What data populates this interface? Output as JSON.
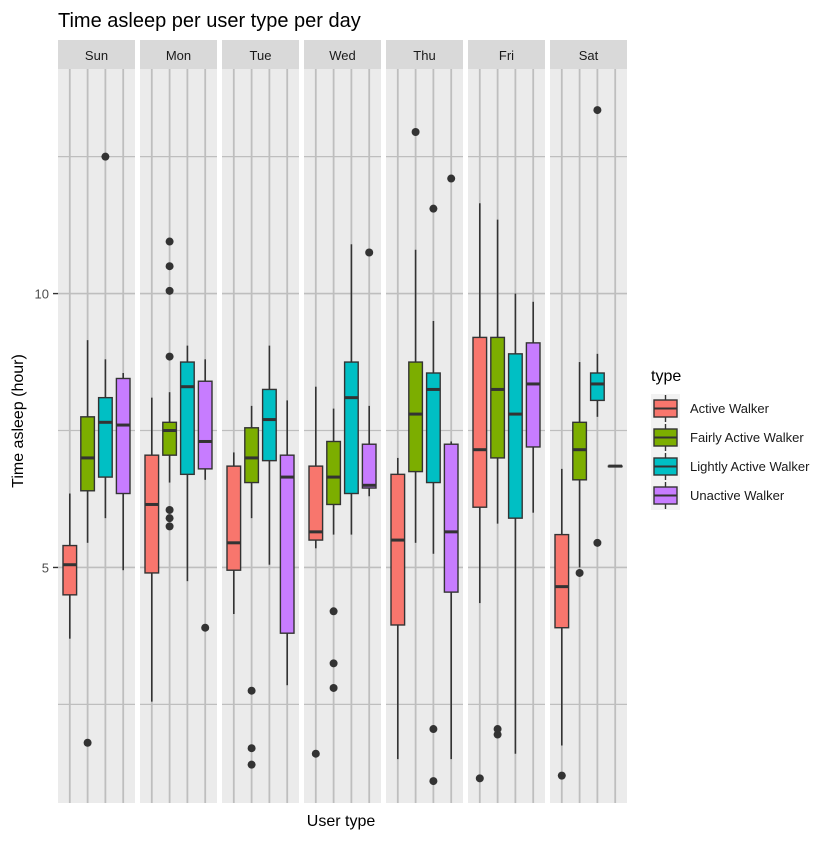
{
  "chart_data": {
    "type": "boxplot",
    "title": "Time asleep per user type per day",
    "xlabel": "User type",
    "ylabel": "Time asleep (hour)",
    "y_ticks": [
      5,
      10
    ],
    "ylim": [
      0.7,
      14.1
    ],
    "facets": [
      "Sun",
      "Mon",
      "Tue",
      "Wed",
      "Thu",
      "Fri",
      "Sat"
    ],
    "legend": {
      "title": "type",
      "position": "right",
      "entries": [
        {
          "name": "Active Walker",
          "color": "#F8766D"
        },
        {
          "name": "Fairly Active Walker",
          "color": "#7CAE00"
        },
        {
          "name": "Lightly Active Walker",
          "color": "#00BFC4"
        },
        {
          "name": "Unactive Walker",
          "color": "#C77CFF"
        }
      ]
    },
    "colors": {
      "panel_bg": "#ebebeb",
      "strip_bg": "#d9d9d9",
      "grid": "#bebebe",
      "box_line": "#333333"
    },
    "series": [
      {
        "name": "Active Walker",
        "boxes": [
          {
            "facet": "Sun",
            "min": 3.7,
            "q1": 4.5,
            "median": 5.05,
            "q3": 5.4,
            "max": 6.35,
            "outliers": []
          },
          {
            "facet": "Mon",
            "min": 2.55,
            "q1": 4.9,
            "median": 6.15,
            "q3": 7.05,
            "max": 8.1,
            "outliers": []
          },
          {
            "facet": "Tue",
            "min": 4.15,
            "q1": 4.95,
            "median": 5.45,
            "q3": 6.85,
            "max": 7.1,
            "outliers": []
          },
          {
            "facet": "Wed",
            "min": 5.35,
            "q1": 5.5,
            "median": 5.65,
            "q3": 6.85,
            "max": 8.3,
            "outliers": [
              1.6
            ]
          },
          {
            "facet": "Thu",
            "min": 1.5,
            "q1": 3.95,
            "median": 5.5,
            "q3": 6.7,
            "max": 7.0,
            "outliers": []
          },
          {
            "facet": "Fri",
            "min": 4.35,
            "q1": 6.1,
            "median": 7.15,
            "q3": 9.2,
            "max": 11.65,
            "outliers": [
              1.15
            ]
          },
          {
            "facet": "Sat",
            "min": 1.75,
            "q1": 3.9,
            "median": 4.65,
            "q3": 5.6,
            "max": 6.8,
            "outliers": [
              1.2
            ]
          }
        ]
      },
      {
        "name": "Fairly Active Walker",
        "boxes": [
          {
            "facet": "Sun",
            "min": 5.45,
            "q1": 6.4,
            "median": 7.0,
            "q3": 7.75,
            "max": 9.15,
            "outliers": [
              1.8
            ]
          },
          {
            "facet": "Mon",
            "min": 6.55,
            "q1": 7.05,
            "median": 7.5,
            "q3": 7.65,
            "max": 8.2,
            "outliers": [
              5.75,
              5.9,
              6.05,
              8.85,
              10.05,
              10.5,
              10.95
            ]
          },
          {
            "facet": "Tue",
            "min": 5.9,
            "q1": 6.55,
            "median": 7.0,
            "q3": 7.55,
            "max": 7.95,
            "outliers": [
              1.4,
              1.7,
              2.75
            ]
          },
          {
            "facet": "Wed",
            "min": 5.6,
            "q1": 6.15,
            "median": 6.65,
            "q3": 7.3,
            "max": 7.9,
            "outliers": [
              2.8,
              3.25,
              4.2
            ]
          },
          {
            "facet": "Thu",
            "min": 5.45,
            "q1": 6.75,
            "median": 7.8,
            "q3": 8.75,
            "max": 10.8,
            "outliers": [
              12.95
            ]
          },
          {
            "facet": "Fri",
            "min": 5.8,
            "q1": 7.0,
            "median": 8.25,
            "q3": 9.2,
            "max": 11.35,
            "outliers": [
              1.95,
              2.05
            ]
          },
          {
            "facet": "Sat",
            "min": 5.0,
            "q1": 6.6,
            "median": 7.15,
            "q3": 7.65,
            "max": 8.75,
            "outliers": [
              4.9
            ]
          }
        ]
      },
      {
        "name": "Lightly Active Walker",
        "boxes": [
          {
            "facet": "Sun",
            "min": 5.9,
            "q1": 6.65,
            "median": 7.65,
            "q3": 8.1,
            "max": 8.8,
            "outliers": [
              12.5
            ]
          },
          {
            "facet": "Mon",
            "min": 4.75,
            "q1": 6.7,
            "median": 8.3,
            "q3": 8.75,
            "max": 9.05,
            "outliers": []
          },
          {
            "facet": "Tue",
            "min": 5.05,
            "q1": 6.95,
            "median": 7.7,
            "q3": 8.25,
            "max": 9.05,
            "outliers": []
          },
          {
            "facet": "Wed",
            "min": 5.6,
            "q1": 6.35,
            "median": 8.1,
            "q3": 8.75,
            "max": 10.9,
            "outliers": []
          },
          {
            "facet": "Thu",
            "min": 5.25,
            "q1": 6.55,
            "median": 8.25,
            "q3": 8.55,
            "max": 9.5,
            "outliers": [
              1.1,
              2.05,
              11.55
            ]
          },
          {
            "facet": "Fri",
            "min": 1.6,
            "q1": 5.9,
            "median": 7.8,
            "q3": 8.9,
            "max": 10.0,
            "outliers": []
          },
          {
            "facet": "Sat",
            "min": 7.75,
            "q1": 8.05,
            "median": 8.35,
            "q3": 8.55,
            "max": 8.9,
            "outliers": [
              5.45,
              13.35
            ]
          }
        ]
      },
      {
        "name": "Unactive Walker",
        "boxes": [
          {
            "facet": "Sun",
            "min": 4.95,
            "q1": 6.35,
            "median": 7.6,
            "q3": 8.45,
            "max": 8.55,
            "outliers": []
          },
          {
            "facet": "Mon",
            "min": 6.6,
            "q1": 6.8,
            "median": 7.3,
            "q3": 8.4,
            "max": 8.8,
            "outliers": [
              3.9
            ]
          },
          {
            "facet": "Tue",
            "min": 2.85,
            "q1": 3.8,
            "median": 6.65,
            "q3": 7.05,
            "max": 8.05,
            "outliers": []
          },
          {
            "facet": "Wed",
            "min": 6.3,
            "q1": 6.45,
            "median": 6.5,
            "q3": 7.25,
            "max": 7.95,
            "outliers": [
              10.75
            ]
          },
          {
            "facet": "Thu",
            "min": 1.5,
            "q1": 4.55,
            "median": 5.65,
            "q3": 7.25,
            "max": 7.3,
            "outliers": [
              12.1
            ]
          },
          {
            "facet": "Fri",
            "min": 6.0,
            "q1": 7.2,
            "median": 8.35,
            "q3": 9.1,
            "max": 9.85,
            "outliers": []
          },
          {
            "facet": "Sat",
            "min": 6.85,
            "q1": 6.85,
            "median": 6.85,
            "q3": 6.85,
            "max": 6.85,
            "outliers": []
          }
        ]
      }
    ]
  }
}
